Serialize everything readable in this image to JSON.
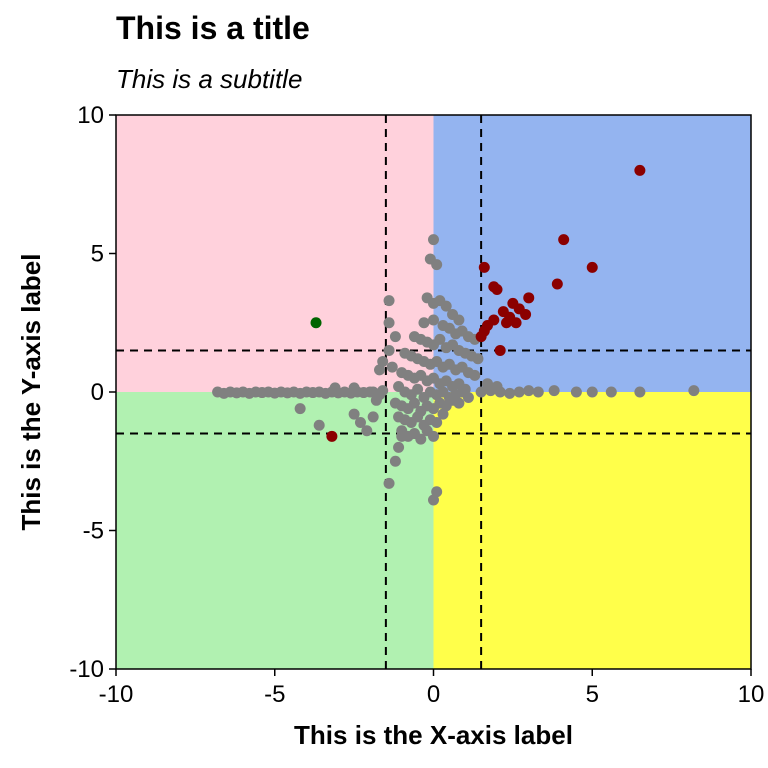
{
  "chart_data": {
    "type": "scatter",
    "title": "This is a title",
    "subtitle": "This is a subtitle",
    "xlabel": "This is the X-axis label",
    "ylabel": "This is the Y-axis label",
    "xlim": [
      -10,
      10
    ],
    "ylim": [
      -10,
      10
    ],
    "x_ticks": [
      -10,
      -5,
      0,
      5,
      10
    ],
    "y_ticks": [
      -10,
      -5,
      0,
      5,
      10
    ],
    "x_tick_labels": [
      "-10",
      "-5",
      "0",
      "5",
      "10"
    ],
    "y_tick_labels": [
      "-10",
      "-5",
      "0",
      "5",
      "10"
    ],
    "grid": false,
    "legend": "none",
    "quadrants": [
      {
        "x": [
          -10,
          0
        ],
        "y": [
          0,
          10
        ],
        "color": "#FFD1DC"
      },
      {
        "x": [
          0,
          10
        ],
        "y": [
          0,
          10
        ],
        "color": "#94B4F0"
      },
      {
        "x": [
          -10,
          0
        ],
        "y": [
          -10,
          0
        ],
        "color": "#B1F1B1"
      },
      {
        "x": [
          0,
          10
        ],
        "y": [
          -10,
          0
        ],
        "color": "#FFFF4A"
      }
    ],
    "reference_lines": {
      "x": [
        -1.5,
        1.5
      ],
      "y": [
        -1.5,
        1.5
      ],
      "style": "dashed",
      "color": "#000000"
    },
    "series": [
      {
        "color": "#808080",
        "points": [
          [
            -6.8,
            0.0
          ],
          [
            -6.6,
            -0.05
          ],
          [
            -6.4,
            0.0
          ],
          [
            -6.2,
            -0.03
          ],
          [
            -6.0,
            0.0
          ],
          [
            -5.8,
            -0.05
          ],
          [
            -5.6,
            0.0
          ],
          [
            -5.4,
            -0.02
          ],
          [
            -5.2,
            0.0
          ],
          [
            -5.0,
            -0.04
          ],
          [
            -4.8,
            0.0
          ],
          [
            -4.6,
            -0.03
          ],
          [
            -4.4,
            0.0
          ],
          [
            -4.2,
            -0.05
          ],
          [
            -4.0,
            0.0
          ],
          [
            -3.8,
            -0.02
          ],
          [
            -3.6,
            0.0
          ],
          [
            -3.4,
            -0.05
          ],
          [
            -3.2,
            0.0
          ],
          [
            -3.0,
            -0.03
          ],
          [
            -2.8,
            0.0
          ],
          [
            -2.6,
            -0.04
          ],
          [
            -2.4,
            0.0
          ],
          [
            -2.2,
            -0.02
          ],
          [
            -2.0,
            0.0
          ],
          [
            -1.9,
            0.0
          ],
          [
            -1.7,
            -0.1
          ],
          [
            -1.6,
            0.05
          ],
          [
            -3.1,
            0.15
          ],
          [
            -2.5,
            0.15
          ],
          [
            -4.2,
            -0.6
          ],
          [
            -3.6,
            -1.2
          ],
          [
            -2.5,
            -0.8
          ],
          [
            -2.3,
            -1.1
          ],
          [
            -1.9,
            -0.9
          ],
          [
            -2.1,
            -1.4
          ],
          [
            -1.8,
            -0.3
          ],
          [
            -1.7,
            0.8
          ],
          [
            -1.6,
            1.1
          ],
          [
            -1.4,
            1.5
          ],
          [
            -1.3,
            0.9
          ],
          [
            -1.4,
            2.5
          ],
          [
            -1.4,
            3.3
          ],
          [
            -1.2,
            2.0
          ],
          [
            -1.4,
            -3.3
          ],
          [
            -1.2,
            -2.5
          ],
          [
            -1.1,
            -2.0
          ],
          [
            -1.0,
            -1.6
          ],
          [
            0.0,
            5.5
          ],
          [
            -0.1,
            4.8
          ],
          [
            0.1,
            4.6
          ],
          [
            -0.2,
            3.4
          ],
          [
            0.0,
            3.2
          ],
          [
            0.2,
            3.3
          ],
          [
            0.4,
            3.1
          ],
          [
            0.6,
            2.8
          ],
          [
            0.8,
            2.6
          ],
          [
            -0.3,
            2.5
          ],
          [
            0.0,
            2.6
          ],
          [
            0.3,
            2.4
          ],
          [
            0.5,
            2.3
          ],
          [
            0.7,
            2.1
          ],
          [
            0.9,
            2.2
          ],
          [
            1.1,
            2.0
          ],
          [
            1.3,
            1.9
          ],
          [
            -0.6,
            2.0
          ],
          [
            -0.4,
            1.9
          ],
          [
            -0.2,
            1.8
          ],
          [
            0.0,
            1.7
          ],
          [
            0.2,
            1.9
          ],
          [
            0.4,
            1.6
          ],
          [
            0.6,
            1.7
          ],
          [
            0.8,
            1.5
          ],
          [
            1.0,
            1.4
          ],
          [
            1.2,
            1.3
          ],
          [
            1.4,
            1.2
          ],
          [
            -0.9,
            1.4
          ],
          [
            -0.7,
            1.3
          ],
          [
            -0.5,
            1.2
          ],
          [
            -0.3,
            1.1
          ],
          [
            -0.1,
            1.0
          ],
          [
            0.1,
            1.1
          ],
          [
            0.3,
            0.9
          ],
          [
            0.5,
            1.0
          ],
          [
            0.7,
            0.8
          ],
          [
            0.9,
            0.9
          ],
          [
            1.1,
            0.7
          ],
          [
            1.3,
            0.6
          ],
          [
            -1.0,
            0.7
          ],
          [
            -0.8,
            0.6
          ],
          [
            -0.6,
            0.5
          ],
          [
            -0.4,
            0.6
          ],
          [
            -0.2,
            0.4
          ],
          [
            0.0,
            0.5
          ],
          [
            0.2,
            0.3
          ],
          [
            0.4,
            0.4
          ],
          [
            0.6,
            0.2
          ],
          [
            0.8,
            0.3
          ],
          [
            1.0,
            0.1
          ],
          [
            -1.1,
            0.2
          ],
          [
            -0.9,
            0.0
          ],
          [
            -0.7,
            -0.1
          ],
          [
            -0.5,
            0.1
          ],
          [
            -0.3,
            -0.2
          ],
          [
            -0.1,
            0.0
          ],
          [
            0.1,
            -0.1
          ],
          [
            0.3,
            0.0
          ],
          [
            0.5,
            -0.2
          ],
          [
            0.7,
            -0.1
          ],
          [
            0.9,
            0.0
          ],
          [
            1.1,
            -0.2
          ],
          [
            -1.2,
            -0.4
          ],
          [
            -1.0,
            -0.5
          ],
          [
            -0.8,
            -0.6
          ],
          [
            -0.6,
            -0.4
          ],
          [
            -0.4,
            -0.7
          ],
          [
            -0.2,
            -0.5
          ],
          [
            0.0,
            -0.6
          ],
          [
            0.2,
            -0.4
          ],
          [
            0.4,
            -0.5
          ],
          [
            0.6,
            -0.3
          ],
          [
            0.8,
            -0.4
          ],
          [
            -1.1,
            -0.9
          ],
          [
            -0.9,
            -1.0
          ],
          [
            -0.7,
            -1.1
          ],
          [
            -0.5,
            -0.9
          ],
          [
            -0.3,
            -1.2
          ],
          [
            -0.1,
            -1.0
          ],
          [
            0.1,
            -1.1
          ],
          [
            0.3,
            -0.8
          ],
          [
            -1.0,
            -1.4
          ],
          [
            -0.8,
            -1.6
          ],
          [
            -0.6,
            -1.5
          ],
          [
            -0.4,
            -1.7
          ],
          [
            -0.2,
            -1.4
          ],
          [
            0.0,
            -1.6
          ],
          [
            0.0,
            -3.9
          ],
          [
            0.1,
            -3.6
          ],
          [
            1.5,
            0.0
          ],
          [
            1.8,
            0.05
          ],
          [
            2.1,
            0.0
          ],
          [
            2.4,
            -0.05
          ],
          [
            2.7,
            0.0
          ],
          [
            3.0,
            0.05
          ],
          [
            3.3,
            0.0
          ],
          [
            3.8,
            0.05
          ],
          [
            4.5,
            0.0
          ],
          [
            5.0,
            0.0
          ],
          [
            5.6,
            0.0
          ],
          [
            6.5,
            0.0
          ],
          [
            8.2,
            0.05
          ],
          [
            1.7,
            0.3
          ],
          [
            2.0,
            0.2
          ]
        ]
      },
      {
        "color": "#8B0000",
        "points": [
          [
            6.5,
            8.0
          ],
          [
            4.1,
            5.5
          ],
          [
            5.0,
            4.5
          ],
          [
            1.6,
            4.5
          ],
          [
            3.9,
            3.9
          ],
          [
            2.0,
            3.7
          ],
          [
            1.9,
            3.8
          ],
          [
            3.0,
            3.4
          ],
          [
            2.5,
            3.2
          ],
          [
            2.7,
            3.0
          ],
          [
            2.2,
            2.9
          ],
          [
            2.4,
            2.7
          ],
          [
            2.9,
            2.8
          ],
          [
            2.6,
            2.5
          ],
          [
            2.3,
            2.5
          ],
          [
            1.9,
            2.6
          ],
          [
            1.7,
            2.4
          ],
          [
            1.6,
            2.2
          ],
          [
            1.5,
            2.0
          ],
          [
            2.1,
            1.5
          ],
          [
            -3.2,
            -1.6
          ]
        ]
      },
      {
        "color": "#006400",
        "points": [
          [
            -3.7,
            2.5
          ]
        ]
      }
    ]
  }
}
